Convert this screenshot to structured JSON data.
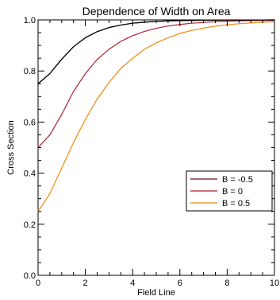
{
  "chart_data": {
    "type": "line",
    "title": "Dependence of Width on Area",
    "xlabel": "Field Line",
    "ylabel": "Cross Section",
    "xlim": [
      0,
      10
    ],
    "ylim": [
      0,
      1
    ],
    "x_ticks": [
      0,
      2,
      4,
      6,
      8,
      10
    ],
    "x_tick_labels": [
      "0",
      "2",
      "4",
      "6",
      "8",
      "10"
    ],
    "y_ticks": [
      0,
      0.2,
      0.4,
      0.6,
      0.8,
      1.0
    ],
    "y_tick_labels": [
      "0.0",
      "0.2",
      "0.4",
      "0.6",
      "0.8",
      "1.0"
    ],
    "grid": false,
    "legend_position": "right",
    "x": [
      0,
      0.5,
      1,
      1.5,
      2,
      2.5,
      3,
      3.5,
      4,
      4.5,
      5,
      5.5,
      6,
      6.5,
      7,
      7.5,
      8,
      8.5,
      9,
      9.5,
      10
    ],
    "series": [
      {
        "name": "B = -0.5",
        "color": "#6b1020",
        "values": [
          0.75,
          0.79,
          0.846,
          0.895,
          0.93,
          0.954,
          0.97,
          0.98,
          0.987,
          0.991,
          0.994,
          0.996,
          0.997,
          0.998,
          0.9987,
          0.9991,
          0.9994,
          0.9996,
          0.9997,
          0.9998,
          0.9999
        ]
      },
      {
        "name": "B = 0",
        "color": "#b02030",
        "values": [
          0.5,
          0.55,
          0.63,
          0.72,
          0.79,
          0.845,
          0.885,
          0.916,
          0.938,
          0.955,
          0.967,
          0.976,
          0.982,
          0.987,
          0.99,
          0.993,
          0.995,
          0.996,
          0.997,
          0.998,
          0.998
        ]
      },
      {
        "name": "B = 0.5",
        "color": "#f08a10",
        "values": [
          0.25,
          0.32,
          0.42,
          0.52,
          0.61,
          0.69,
          0.755,
          0.81,
          0.85,
          0.885,
          0.91,
          0.93,
          0.947,
          0.959,
          0.968,
          0.975,
          0.981,
          0.985,
          0.988,
          0.991,
          0.993
        ]
      }
    ],
    "extra_lines": [
      {
        "color": "#000000",
        "values": [
          0.75,
          0.79,
          0.846,
          0.895,
          0.93,
          0.954,
          0.97,
          0.98,
          0.987,
          0.991,
          0.994,
          0.996,
          0.997,
          0.998,
          0.9987,
          0.9991,
          0.9994,
          0.9996,
          0.9997,
          0.9998,
          0.9999
        ]
      }
    ]
  }
}
